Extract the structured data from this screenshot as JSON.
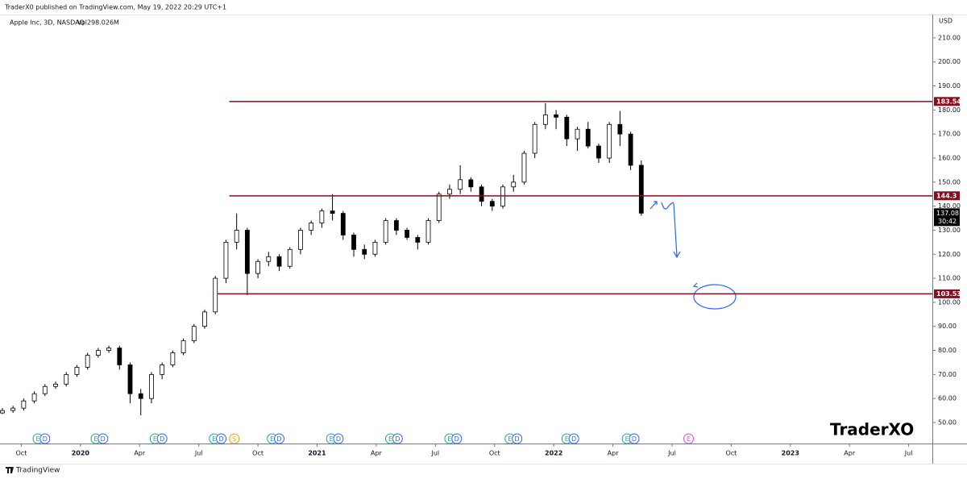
{
  "header": "TraderX0 published on TradingView.com, May 19, 2022 20:29 UTC+1",
  "footer": "TradingView",
  "watermark": "TraderXO",
  "chart_data": {
    "type": "candlestick",
    "title": "Apple Inc, 3D, NASDAQ",
    "volume_label": "Vol298.026M",
    "currency": "USD",
    "countdown": "30:42",
    "x": [
      2019.67,
      2019.715,
      2019.76,
      2019.805,
      2019.85,
      2019.895,
      2019.94,
      2019.985,
      2020.03,
      2020.075,
      2020.12,
      2020.165,
      2020.21,
      2020.255,
      2020.3,
      2020.345,
      2020.39,
      2020.435,
      2020.48,
      2020.525,
      2020.57,
      2020.615,
      2020.66,
      2020.705,
      2020.75,
      2020.795,
      2020.84,
      2020.885,
      2020.93,
      2020.975,
      2021.02,
      2021.065,
      2021.11,
      2021.155,
      2021.2,
      2021.245,
      2021.29,
      2021.335,
      2021.38,
      2021.425,
      2021.47,
      2021.515,
      2021.56,
      2021.605,
      2021.65,
      2021.695,
      2021.74,
      2021.785,
      2021.83,
      2021.875,
      2021.92,
      2021.965,
      2022.01,
      2022.055,
      2022.1,
      2022.145,
      2022.19,
      2022.235,
      2022.28,
      2022.325,
      2022.37
    ],
    "open": [
      54,
      55,
      56,
      59,
      62,
      65,
      66,
      70,
      73,
      78,
      80,
      81,
      74,
      62,
      60,
      70,
      74,
      79,
      84,
      90,
      96,
      110,
      125,
      130,
      112,
      117,
      119,
      115,
      122,
      130,
      133,
      138,
      137,
      128,
      122,
      120,
      125,
      134,
      130,
      127,
      125,
      134,
      145,
      147,
      151,
      148,
      142,
      140,
      148,
      150,
      162,
      174,
      178,
      177,
      168,
      172,
      165,
      160,
      174,
      170,
      157
    ],
    "high": [
      56,
      57,
      60,
      63,
      66,
      67,
      71,
      74,
      79,
      81,
      82,
      82,
      75,
      64,
      71,
      75,
      80,
      85,
      91,
      97,
      111,
      126,
      137,
      131,
      118,
      121,
      120,
      123,
      131,
      134,
      139,
      145,
      138,
      129,
      124,
      126,
      135,
      135,
      131,
      128,
      135,
      146,
      149,
      157,
      152,
      149,
      143,
      149,
      153,
      163,
      175,
      182.9,
      180,
      178,
      173,
      175,
      166,
      175,
      179.6,
      171,
      159
    ],
    "low": [
      53.5,
      54,
      55,
      58,
      61,
      64,
      65,
      69,
      72,
      77,
      79,
      72,
      58,
      53,
      58,
      68,
      73,
      78,
      83,
      89,
      95,
      108,
      122,
      103,
      110,
      115,
      113,
      114,
      120,
      128,
      131,
      134,
      126,
      119,
      118,
      119,
      124,
      128,
      126,
      122,
      124,
      133,
      143,
      145,
      146,
      140,
      138,
      139,
      146,
      149,
      160,
      172,
      172,
      165,
      163,
      164,
      158,
      158,
      165,
      155,
      136
    ],
    "close": [
      55,
      56,
      59,
      62,
      65,
      66,
      70,
      73,
      78,
      80,
      81,
      74,
      62,
      60,
      70,
      74,
      79,
      84,
      90,
      96,
      110,
      125,
      130,
      112,
      117,
      119,
      115,
      122,
      130,
      133,
      138,
      137,
      128,
      122,
      120,
      125,
      134,
      130,
      127,
      125,
      134,
      145,
      147,
      151,
      148,
      142,
      140,
      148,
      150,
      162,
      174,
      178,
      177,
      168,
      172,
      165,
      160,
      174,
      170,
      157,
      137.08
    ],
    "up_color": "#ffffff",
    "down_color": "#000000",
    "levels": [
      {
        "value": 183.54,
        "x_start": 2020.629,
        "color": "#880e1f"
      },
      {
        "value": 144.3,
        "x_start": 2020.629,
        "color": "#880e1f"
      },
      {
        "value": 103.53,
        "x_start": 2020.578,
        "color": "#880e1f"
      }
    ],
    "events": [
      {
        "x": 2019.82,
        "label": "E",
        "color": "#26a69a"
      },
      {
        "x": 2019.85,
        "label": "D",
        "color": "#2962ff"
      },
      {
        "x": 2020.065,
        "label": "E",
        "color": "#26a69a"
      },
      {
        "x": 2020.095,
        "label": "D",
        "color": "#2962ff"
      },
      {
        "x": 2020.315,
        "label": "E",
        "color": "#26a69a"
      },
      {
        "x": 2020.345,
        "label": "D",
        "color": "#2962ff"
      },
      {
        "x": 2020.565,
        "label": "E",
        "color": "#26a69a"
      },
      {
        "x": 2020.595,
        "label": "D",
        "color": "#2962ff"
      },
      {
        "x": 2020.65,
        "label": "S",
        "color": "#ff9800"
      },
      {
        "x": 2020.81,
        "label": "E",
        "color": "#26a69a"
      },
      {
        "x": 2020.84,
        "label": "D",
        "color": "#2962ff"
      },
      {
        "x": 2021.06,
        "label": "E",
        "color": "#26a69a"
      },
      {
        "x": 2021.09,
        "label": "D",
        "color": "#2962ff"
      },
      {
        "x": 2021.31,
        "label": "E",
        "color": "#26a69a"
      },
      {
        "x": 2021.34,
        "label": "D",
        "color": "#2962ff"
      },
      {
        "x": 2021.56,
        "label": "E",
        "color": "#26a69a"
      },
      {
        "x": 2021.59,
        "label": "D",
        "color": "#2962ff"
      },
      {
        "x": 2021.815,
        "label": "E",
        "color": "#26a69a"
      },
      {
        "x": 2021.845,
        "label": "D",
        "color": "#2962ff"
      },
      {
        "x": 2022.055,
        "label": "E",
        "color": "#26a69a"
      },
      {
        "x": 2022.085,
        "label": "D",
        "color": "#2962ff"
      },
      {
        "x": 2022.31,
        "label": "E",
        "color": "#26a69a"
      },
      {
        "x": 2022.34,
        "label": "D",
        "color": "#2962ff"
      },
      {
        "x": 2022.57,
        "label": "E",
        "color": "#e040fb"
      }
    ],
    "xlim": [
      2019.66,
      2023.6
    ],
    "xticks": [
      {
        "value": 2019.75,
        "label": "Oct"
      },
      {
        "value": 2020,
        "label": "2020"
      },
      {
        "value": 2020.25,
        "label": "Apr"
      },
      {
        "value": 2020.5,
        "label": "Jul"
      },
      {
        "value": 2020.75,
        "label": "Oct"
      },
      {
        "value": 2021,
        "label": "2021"
      },
      {
        "value": 2021.25,
        "label": "Apr"
      },
      {
        "value": 2021.5,
        "label": "Jul"
      },
      {
        "value": 2021.75,
        "label": "Oct"
      },
      {
        "value": 2022,
        "label": "2022"
      },
      {
        "value": 2022.25,
        "label": "Apr"
      },
      {
        "value": 2022.5,
        "label": "Jul"
      },
      {
        "value": 2022.75,
        "label": "Oct"
      },
      {
        "value": 2023,
        "label": "2023"
      },
      {
        "value": 2023.25,
        "label": "Apr"
      },
      {
        "value": 2023.5,
        "label": "Jul"
      }
    ],
    "ylim": [
      41.28,
      219.7
    ],
    "yticks": [
      {
        "value": 50,
        "label": "50.00"
      },
      {
        "value": 60,
        "label": "60.00"
      },
      {
        "value": 70,
        "label": "70.00"
      },
      {
        "value": 80,
        "label": "80.00"
      },
      {
        "value": 90,
        "label": "90.00"
      },
      {
        "value": 100,
        "label": "100.00"
      },
      {
        "value": 110,
        "label": "110.00"
      },
      {
        "value": 120,
        "label": "120.00"
      },
      {
        "value": 130,
        "label": "130.00"
      },
      {
        "value": 140,
        "label": "140.00"
      },
      {
        "value": 150,
        "label": "150.00"
      },
      {
        "value": 160,
        "label": "160.00"
      },
      {
        "value": 170,
        "label": "170.00"
      },
      {
        "value": 180,
        "label": "180.00"
      },
      {
        "value": 190,
        "label": "190.00"
      },
      {
        "value": 200,
        "label": "200.00"
      },
      {
        "value": 210,
        "label": "210.00"
      }
    ]
  }
}
